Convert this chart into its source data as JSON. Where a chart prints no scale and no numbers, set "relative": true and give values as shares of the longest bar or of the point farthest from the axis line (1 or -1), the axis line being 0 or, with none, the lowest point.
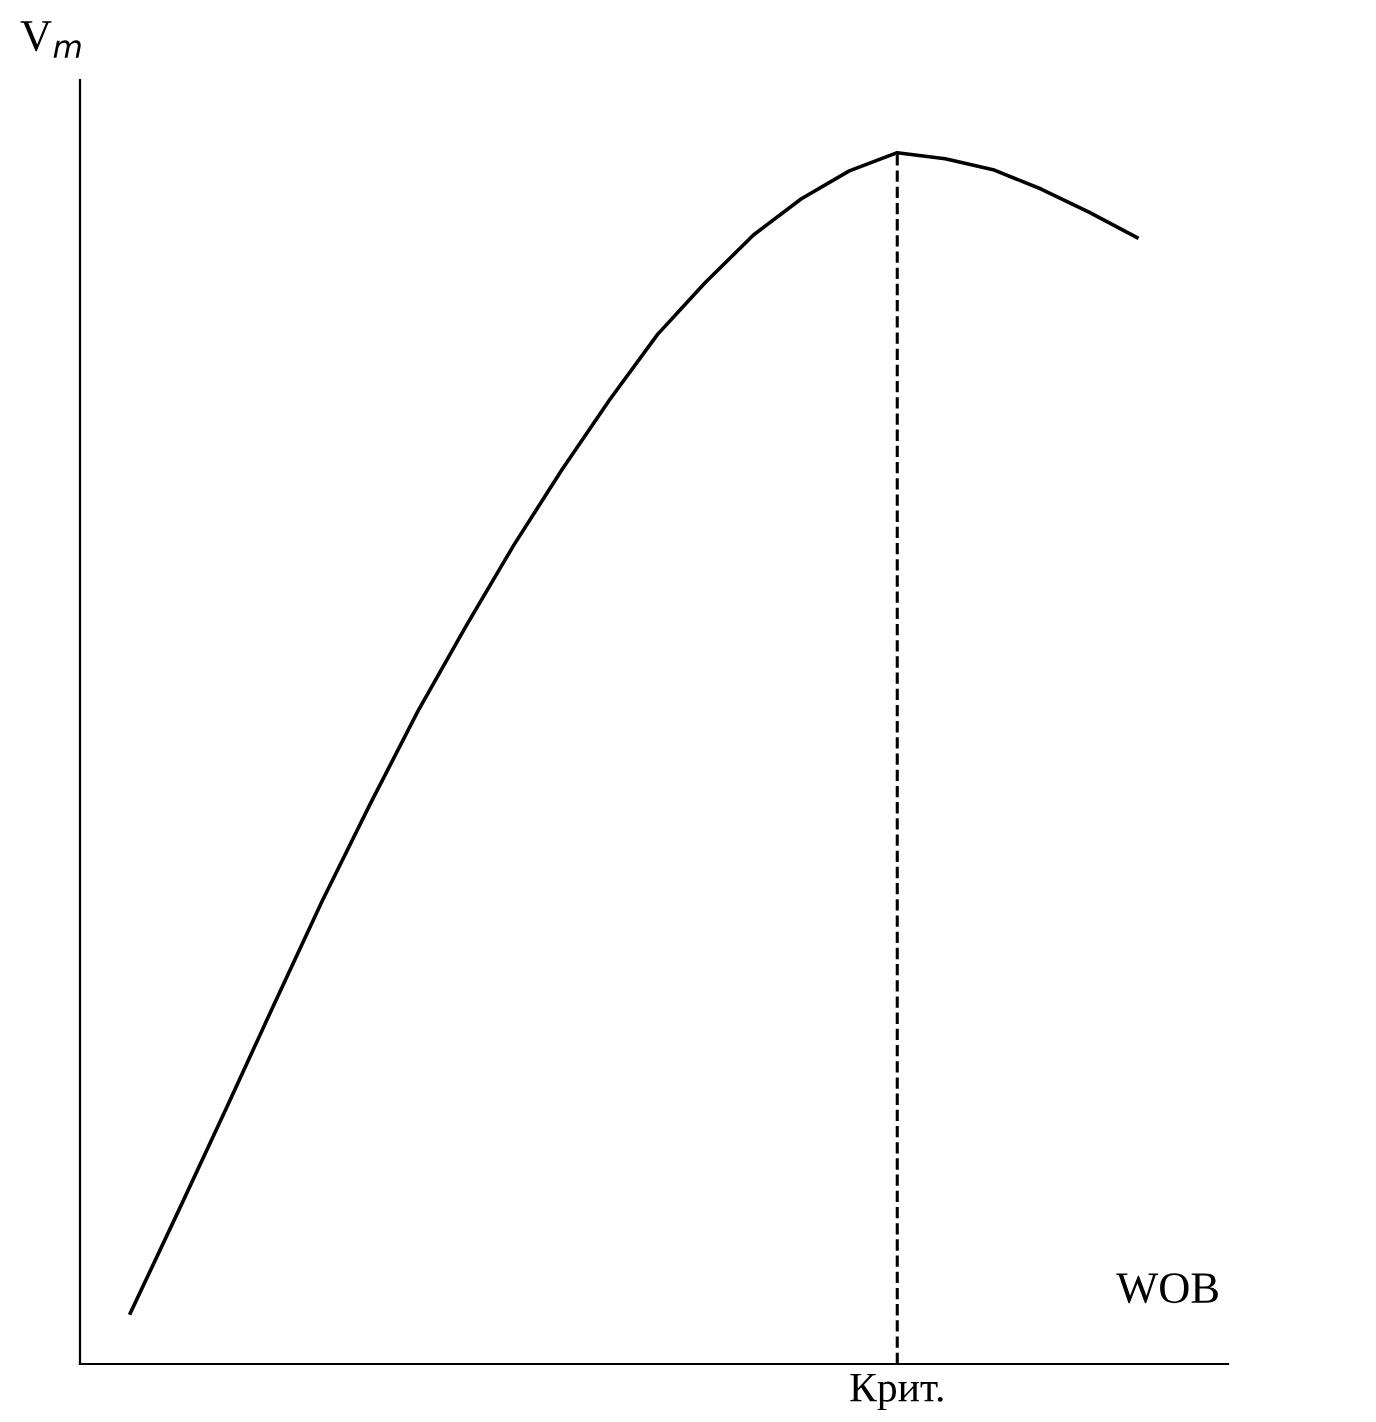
{
  "chart_data": {
    "type": "line",
    "relative": true,
    "ylabel": "V$_{m}$",
    "xlabel": "WOB",
    "categories": [
      null,
      null,
      null,
      null,
      null,
      null,
      null,
      null,
      null,
      null,
      null,
      null,
      null,
      null,
      null,
      null,
      null,
      null,
      null,
      null,
      null,
      null
    ],
    "series": [
      {
        "color": "#000000",
        "values": [
          0.042,
          0.126,
          0.211,
          0.297,
          0.382,
          0.462,
          0.539,
          0.609,
          0.676,
          0.738,
          0.796,
          0.85,
          0.893,
          0.932,
          0.962,
          0.985,
          1.0,
          0.995,
          0.986,
          0.97,
          0.951,
          0.93
        ]
      }
    ],
    "ref_lines": [
      {
        "axis": "x",
        "label": "Крит.",
        "color": "#000000",
        "line_style": "dashed"
      }
    ],
    "legend": false,
    "marker": "none",
    "line_style": "solid"
  }
}
